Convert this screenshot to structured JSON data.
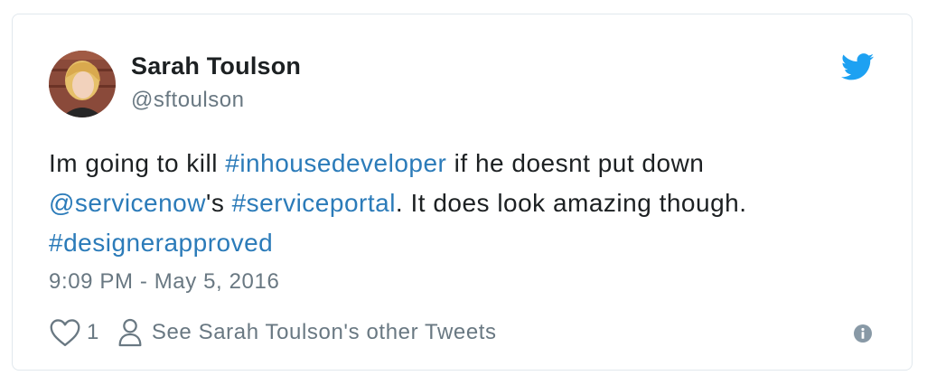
{
  "tweet": {
    "author_name": "Sarah Toulson",
    "author_handle": "@sftoulson",
    "text_parts": [
      {
        "type": "text",
        "value": "Im going to kill "
      },
      {
        "type": "hashtag",
        "value": "#inhousedeveloper"
      },
      {
        "type": "text",
        "value": " if he doesnt put down "
      },
      {
        "type": "mention",
        "value": "@servicenow"
      },
      {
        "type": "text",
        "value": "'s "
      },
      {
        "type": "hashtag",
        "value": "#serviceportal"
      },
      {
        "type": "text",
        "value": ". It does look amazing though. "
      },
      {
        "type": "hashtag",
        "value": "#designerapproved"
      }
    ],
    "timestamp": "9:09 PM - May 5, 2016",
    "like_count": "1",
    "other_tweets_label": "See Sarah Toulson's other Tweets"
  },
  "icons": {
    "logo": "twitter-bird-icon",
    "like": "heart-icon",
    "profile": "person-icon",
    "info": "info-icon"
  },
  "colors": {
    "link": "#2b7bb9",
    "brand": "#1da1f2",
    "muted": "#697882",
    "text": "#1c2022",
    "border": "#e1e8ed"
  }
}
